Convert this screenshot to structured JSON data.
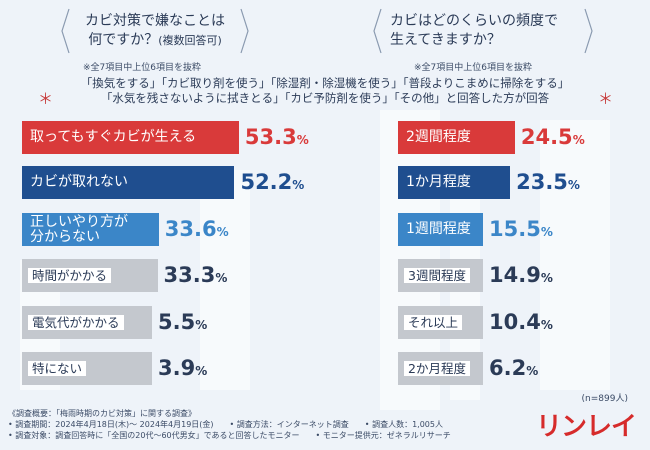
{
  "left_question": {
    "line1": "カビ対策で嫌なことは",
    "line2": "何ですか？",
    "line2_small": "(複数回答可)"
  },
  "right_question": {
    "line1": "カビはどのくらいの頻度で",
    "line2": "生えてきますか？"
  },
  "left_note": "※全7項目中上位6項目を抜粋",
  "right_note": "※全7項目中上位6項目を抜粋",
  "condition": {
    "line1": "「換気をする」「カビ取り剤を使う」「除湿剤・除湿機を使う」「普段よりこまめに掃除をする」",
    "line2": "「水気を残さないように拭きとる」「カビ予防剤を使う」「その他」と回答した方が回答"
  },
  "star": "＊",
  "sample": "(n=899人)",
  "footer": {
    "line1": "《調査概要：「梅雨時期のカビ対策」に関する調査》",
    "line2": "• 調査期間：2024年4月18日(木)～ 2024年4月19日(金)　　• 調査方法：インターネット調査　　• 調査人数：1,005人",
    "line3": "• 調査対象：調査回答時に「全国の20代～60代男女」であると回答したモニター　　• モニター提供元：ゼネラルリサーチ"
  },
  "logo": "リンレイ",
  "colors": {
    "red": "#d93a3a",
    "navy": "#1f4e8f",
    "blue": "#3b86c8",
    "gray": "#c4c8ce"
  },
  "chart_data": [
    {
      "type": "bar",
      "title": "カビ対策で嫌なことは何ですか？(複数回答可)",
      "categories": [
        "取ってもすぐカビが生える",
        "カビが取れない",
        "正しいやり方が分からない",
        "時間がかかる",
        "電気代がかかる",
        "特にない"
      ],
      "display_labels": [
        "取ってもすぐカビが生える",
        "カビが取れない",
        "正しいやり方が\n分からない",
        "時間がかかる",
        "電気代がかかる",
        "特にない"
      ],
      "values": [
        53.3,
        52.2,
        33.6,
        33.3,
        5.5,
        3.9
      ],
      "value_labels": [
        {
          "n": "53.3",
          "u": "%"
        },
        {
          "n": "52.2",
          "u": "%"
        },
        {
          "n": "33.6",
          "u": "%"
        },
        {
          "n": "33.3",
          "u": "%"
        },
        {
          "n": "5.5",
          "u": "%"
        },
        {
          "n": "3.9",
          "u": "%"
        }
      ],
      "unit": "%"
    },
    {
      "type": "bar",
      "title": "カビはどのくらいの頻度で生えてきますか？",
      "categories": [
        "2週間程度",
        "1か月程度",
        "1週間程度",
        "3週間程度",
        "それ以上",
        "2か月程度"
      ],
      "values": [
        24.5,
        23.5,
        15.5,
        14.9,
        10.4,
        6.2
      ],
      "value_labels": [
        {
          "n": "24.5",
          "u": "%"
        },
        {
          "n": "23.5",
          "u": "%"
        },
        {
          "n": "15.5",
          "u": "%"
        },
        {
          "n": "14.9",
          "u": "%"
        },
        {
          "n": "10.4",
          "u": "%"
        },
        {
          "n": "6.2",
          "u": "%"
        }
      ],
      "unit": "%"
    }
  ]
}
